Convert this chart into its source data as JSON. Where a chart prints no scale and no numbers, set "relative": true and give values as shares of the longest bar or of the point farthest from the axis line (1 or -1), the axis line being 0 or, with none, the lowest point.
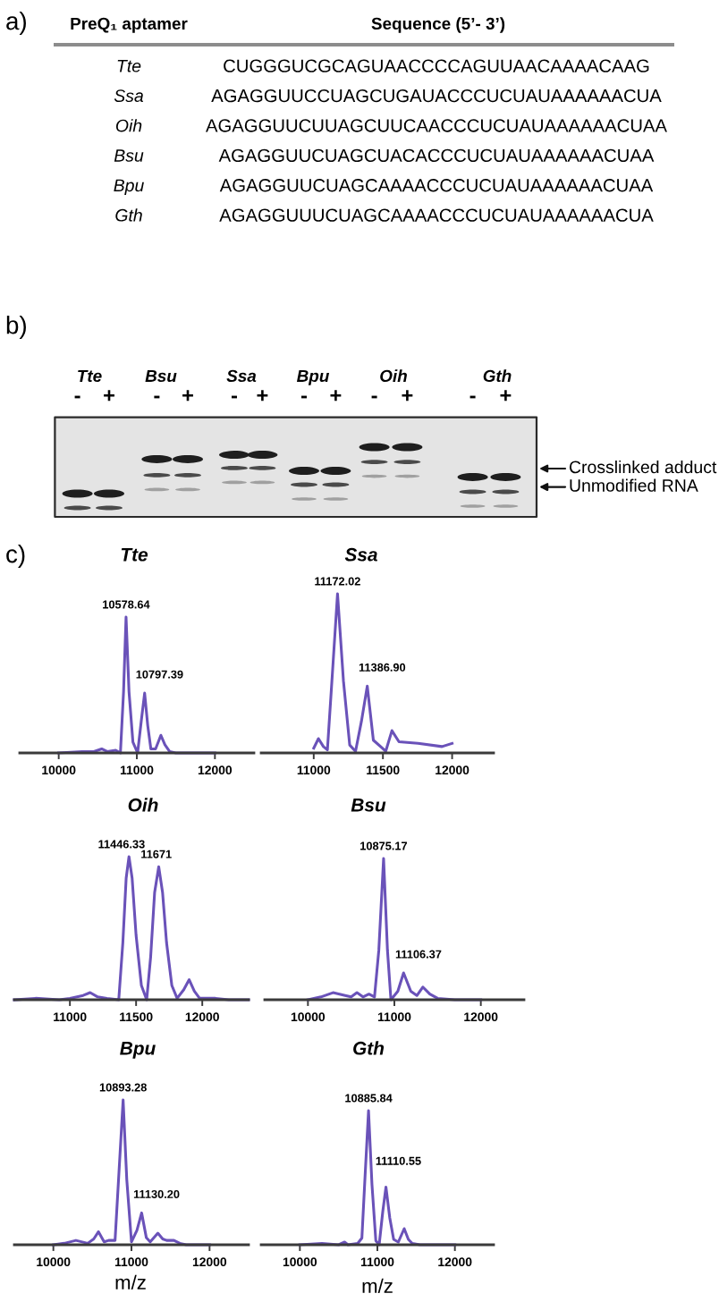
{
  "chart_data": [
    {
      "type": "other",
      "categories": [
        "Tte",
        "Ssa",
        "Oih",
        "Bsu",
        "Bpu",
        "Gth"
      ],
      "annotations": [
        "a)",
        "PreQ₁ aptamer",
        "Sequence (5’- 3’)",
        "CUGGGUCGCAGUAACCCCAGUUAACAAAACAAG",
        "AGAGGUUCCUAGCUGAUACCCUCUAUAAAAAACUA",
        "AGAGGUUCUUAGCUUCAACCCUCUAUAAAAAACUAA",
        "AGAGGUUCUAGCUACACCCUCUAUAAAAAACUAA",
        "AGAGGUUCUAGCAAAACCCUCUAUAAAAAACUAA",
        "AGAGGUUUCUAGCAAAACCCUCUAUAAAAAACUA"
      ]
    },
    {
      "type": "other",
      "categories": [
        "Tte",
        "Bsu",
        "Ssa",
        "Bpu",
        "Oih",
        "Gth"
      ],
      "annotations": [
        "b)",
        "-",
        "+",
        "-",
        "+",
        "-",
        "+",
        "-",
        "+",
        "-",
        "+",
        "-",
        "+",
        "Crosslinked adduct",
        "Unmodified RNA"
      ]
    },
    {
      "type": "line",
      "relative": true,
      "title": "Tte",
      "color": "#6a52b9",
      "xlim": [
        9500,
        12500
      ],
      "xticks": [
        10000,
        11000,
        12000
      ],
      "x": [
        10000,
        10300,
        10450,
        10550,
        10620,
        10730,
        10790,
        10830,
        10862,
        10900,
        10950,
        11010,
        11060,
        11100,
        11140,
        11180,
        11240,
        11308,
        11360,
        11420,
        11500,
        12000
      ],
      "values": [
        0,
        0.01,
        0.01,
        0.03,
        0.01,
        0.02,
        0,
        0.45,
        1,
        0.45,
        0.08,
        0,
        0.25,
        0.44,
        0.2,
        0.03,
        0.03,
        0.13,
        0.06,
        0.01,
        0,
        0
      ],
      "annotations": [
        "c)",
        {
          "text": "10578.64",
          "x": 10862,
          "y": 1
        },
        {
          "text": "10797.39",
          "x": 11100,
          "y": 0.44
        }
      ]
    },
    {
      "type": "line",
      "relative": true,
      "title": "Ssa",
      "color": "#6a52b9",
      "xlim": [
        10620,
        12300
      ],
      "xticks": [
        11000,
        11500,
        12000
      ],
      "x": [
        11000,
        11034,
        11070,
        11099,
        11135,
        11172.02,
        11215,
        11260,
        11302,
        11345,
        11386.9,
        11431,
        11496,
        11520,
        11565,
        11616,
        11754,
        11927,
        12000
      ],
      "values": [
        0.03,
        0.09,
        0.04,
        0.02,
        0.5,
        1,
        0.45,
        0.05,
        0.01,
        0.2,
        0.42,
        0.08,
        0.03,
        0.01,
        0.14,
        0.07,
        0.06,
        0.04,
        0.06
      ],
      "annotations": [
        {
          "text": "11172.02",
          "x": 11172.02,
          "y": 1
        },
        {
          "text": "11386.90",
          "x": 11386.9,
          "y": 0.42
        }
      ]
    },
    {
      "type": "line",
      "relative": true,
      "title": "Oih",
      "color": "#6a52b9",
      "xlim": [
        10580,
        12350
      ],
      "xticks": [
        11000,
        11500,
        12000
      ],
      "x": [
        10580,
        10740,
        10920,
        11000,
        11100,
        11153,
        11210,
        11280,
        11369,
        11400,
        11425,
        11446.33,
        11470,
        11500,
        11540,
        11580,
        11610,
        11640,
        11671,
        11700,
        11730,
        11770,
        11810,
        11860,
        11901,
        11940,
        11980,
        12100,
        12200,
        12350
      ],
      "values": [
        0,
        0.01,
        0,
        0.01,
        0.03,
        0.05,
        0.02,
        0.01,
        0,
        0.4,
        0.85,
        1,
        0.85,
        0.45,
        0.1,
        0,
        0.3,
        0.75,
        0.93,
        0.75,
        0.4,
        0.1,
        0.01,
        0.07,
        0.14,
        0.06,
        0.01,
        0.01,
        0,
        0
      ],
      "annotations": [
        {
          "text": "11446.33",
          "x": 11446.33,
          "y": 1
        },
        {
          "text": "11671",
          "x": 11671,
          "y": 0.93
        }
      ]
    },
    {
      "type": "line",
      "relative": true,
      "title": "Bsu",
      "color": "#6a52b9",
      "xlim": [
        9500,
        12500
      ],
      "xticks": [
        10000,
        11000,
        12000
      ],
      "x": [
        10000,
        10150,
        10290,
        10430,
        10500,
        10567,
        10637,
        10706,
        10770,
        10820,
        10875.17,
        10920,
        10960,
        11040,
        11106.37,
        11190,
        11260,
        11329,
        11410,
        11500,
        11700,
        12000
      ],
      "values": [
        0,
        0.02,
        0.05,
        0.03,
        0.02,
        0.05,
        0.02,
        0.04,
        0.02,
        0.35,
        1,
        0.35,
        0,
        0.06,
        0.19,
        0.06,
        0.03,
        0.09,
        0.04,
        0.01,
        0,
        0
      ],
      "annotations": [
        {
          "text": "10875.17",
          "x": 10875.17,
          "y": 1
        },
        {
          "text": "11106.37",
          "x": 11106.37,
          "y": 0.19
        }
      ]
    },
    {
      "type": "line",
      "relative": true,
      "title": "Bpu",
      "color": "#6a52b9",
      "xlabel": "m/z",
      "xlim": [
        9500,
        12500
      ],
      "xticks": [
        10000,
        11000,
        12000
      ],
      "x": [
        10000,
        10140,
        10289,
        10440,
        10517,
        10578,
        10650,
        10707,
        10760,
        10790,
        10840,
        10893.28,
        10940,
        11000,
        11070,
        11130.2,
        11190,
        11240,
        11338,
        11400,
        11450,
        11544,
        11620,
        11700,
        12000
      ],
      "values": [
        0,
        0.01,
        0.03,
        0.01,
        0.04,
        0.09,
        0.02,
        0.03,
        0.03,
        0.03,
        0.5,
        1,
        0.45,
        0.02,
        0.1,
        0.22,
        0.05,
        0.02,
        0.08,
        0.04,
        0.03,
        0.03,
        0.01,
        0,
        0
      ],
      "annotations": [
        {
          "text": "10893.28",
          "x": 10893.28,
          "y": 1
        },
        {
          "text": "11130.20",
          "x": 11130.2,
          "y": 0.22
        }
      ]
    },
    {
      "type": "line",
      "relative": true,
      "title": "Gth",
      "color": "#6a52b9",
      "xlabel": "m/z",
      "xlim": [
        9500,
        12500
      ],
      "xticks": [
        10000,
        11000,
        12000
      ],
      "x": [
        10000,
        10285,
        10500,
        10577,
        10620,
        10746,
        10800,
        10840,
        10885.84,
        10930,
        10980,
        11023,
        11070,
        11110.55,
        11160,
        11210,
        11270,
        11346,
        11400,
        11450,
        11550,
        12000
      ],
      "values": [
        0,
        0.01,
        0,
        0.02,
        0,
        0.01,
        0.05,
        0.5,
        1,
        0.45,
        0.03,
        0,
        0.25,
        0.43,
        0.2,
        0.04,
        0.02,
        0.12,
        0.04,
        0.01,
        0,
        0
      ],
      "annotations": [
        {
          "text": "10885.84",
          "x": 10885.84,
          "y": 1
        },
        {
          "text": "11110.55",
          "x": 11110.55,
          "y": 0.43
        }
      ]
    }
  ]
}
